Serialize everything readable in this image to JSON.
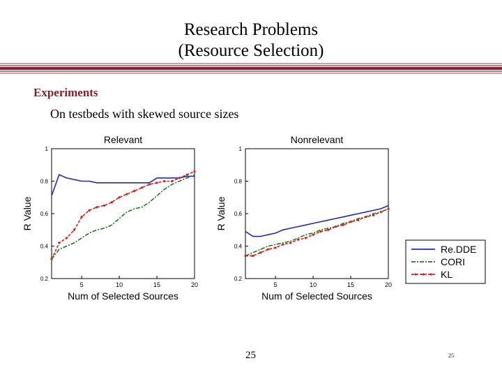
{
  "slide": {
    "title_line1": "Research Problems",
    "title_line2": "(Resource Selection)",
    "heading": "Experiments",
    "subheading": "On testbeds with skewed source sizes",
    "page_number": "25",
    "page_number_small": "25"
  },
  "colors": {
    "accent": "#8a1e2a",
    "redde": "#1f2bb8",
    "cori": "#1c7a1c",
    "kl": "#d42020"
  },
  "chart_data": [
    {
      "type": "line",
      "title": "Relevant",
      "xlabel": "Num of Selected Sources",
      "ylabel": "R Value",
      "xlim": [
        1,
        20
      ],
      "ylim": [
        0.2,
        1.0
      ],
      "xticks": [
        5,
        10,
        15,
        20
      ],
      "yticks": [
        0.2,
        0.4,
        0.6,
        0.8,
        1
      ],
      "x": [
        1,
        2,
        3,
        4,
        5,
        6,
        7,
        8,
        9,
        10,
        11,
        12,
        13,
        14,
        15,
        16,
        17,
        18,
        19,
        20
      ],
      "series": [
        {
          "name": "Re.DDE",
          "values": [
            0.71,
            0.84,
            0.82,
            0.81,
            0.8,
            0.8,
            0.79,
            0.79,
            0.79,
            0.79,
            0.79,
            0.79,
            0.79,
            0.79,
            0.82,
            0.82,
            0.82,
            0.82,
            0.83,
            0.83
          ]
        },
        {
          "name": "CORI",
          "values": [
            0.32,
            0.38,
            0.4,
            0.42,
            0.45,
            0.48,
            0.5,
            0.51,
            0.53,
            0.57,
            0.61,
            0.63,
            0.64,
            0.67,
            0.71,
            0.75,
            0.78,
            0.8,
            0.82,
            0.84
          ]
        },
        {
          "name": "KL",
          "values": [
            0.32,
            0.42,
            0.45,
            0.5,
            0.58,
            0.62,
            0.64,
            0.65,
            0.67,
            0.7,
            0.72,
            0.74,
            0.76,
            0.78,
            0.79,
            0.8,
            0.8,
            0.82,
            0.84,
            0.86
          ]
        }
      ]
    },
    {
      "type": "line",
      "title": "Nonrelevant",
      "xlabel": "Num of Selected Sources",
      "ylabel": "R Value",
      "xlim": [
        1,
        20
      ],
      "ylim": [
        0.2,
        1.0
      ],
      "xticks": [
        5,
        10,
        15,
        20
      ],
      "yticks": [
        0.2,
        0.4,
        0.6,
        0.8,
        1
      ],
      "x": [
        1,
        2,
        3,
        4,
        5,
        6,
        7,
        8,
        9,
        10,
        11,
        12,
        13,
        14,
        15,
        16,
        17,
        18,
        19,
        20
      ],
      "series": [
        {
          "name": "Re.DDE",
          "values": [
            0.49,
            0.46,
            0.46,
            0.47,
            0.48,
            0.5,
            0.51,
            0.52,
            0.53,
            0.54,
            0.55,
            0.56,
            0.57,
            0.58,
            0.59,
            0.6,
            0.61,
            0.62,
            0.63,
            0.65
          ]
        },
        {
          "name": "CORI",
          "values": [
            0.34,
            0.36,
            0.38,
            0.4,
            0.41,
            0.42,
            0.43,
            0.45,
            0.47,
            0.48,
            0.5,
            0.51,
            0.52,
            0.54,
            0.55,
            0.57,
            0.58,
            0.6,
            0.61,
            0.63
          ]
        },
        {
          "name": "KL",
          "values": [
            0.34,
            0.34,
            0.36,
            0.38,
            0.39,
            0.41,
            0.42,
            0.44,
            0.45,
            0.47,
            0.49,
            0.5,
            0.52,
            0.53,
            0.55,
            0.56,
            0.58,
            0.59,
            0.61,
            0.63
          ]
        }
      ]
    }
  ],
  "legend": {
    "items": [
      "Re.DDE",
      "CORI",
      "KL"
    ]
  }
}
